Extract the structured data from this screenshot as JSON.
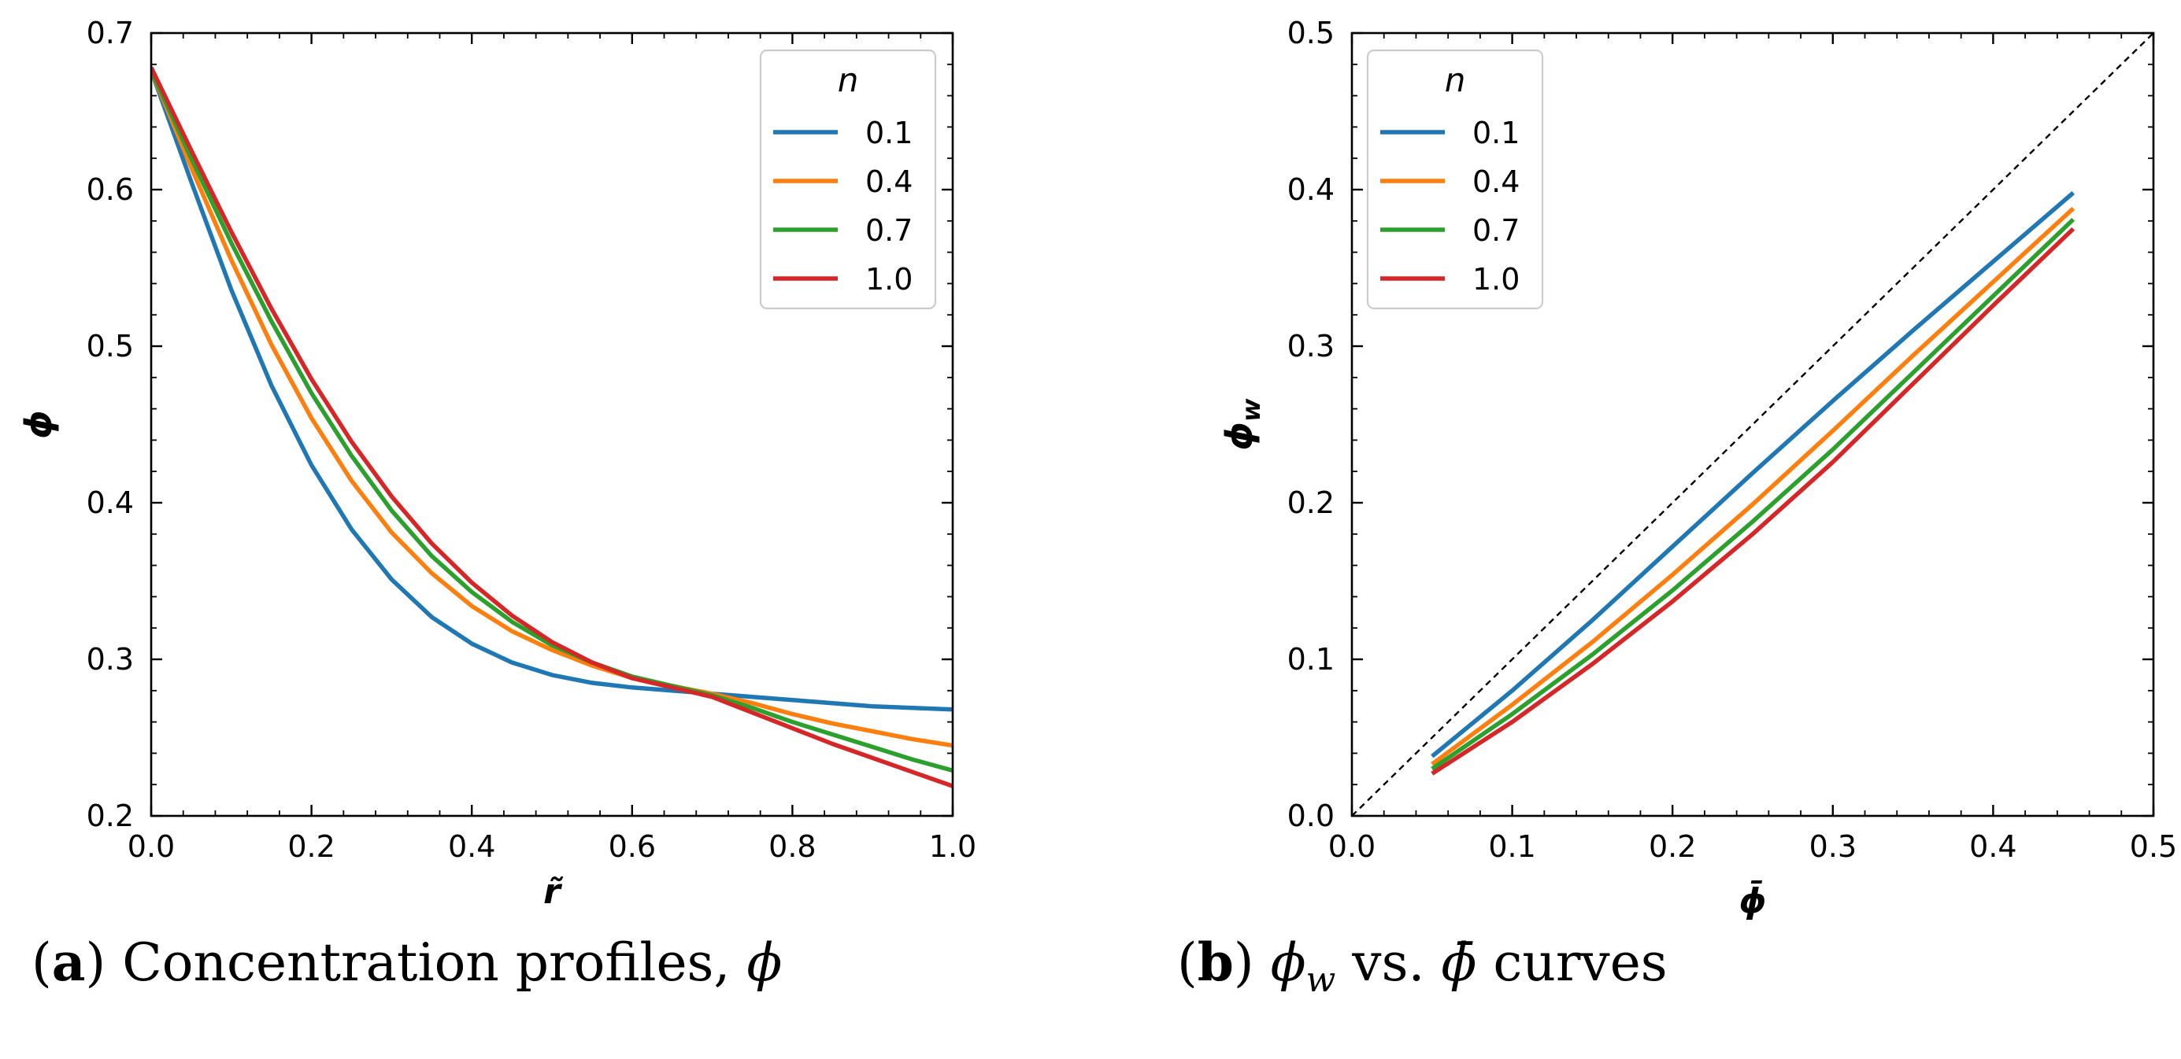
{
  "chart_data": [
    {
      "type": "line",
      "panel": "a",
      "xlabel": "r̃",
      "ylabel": "ϕ",
      "xlim": [
        0.0,
        1.0
      ],
      "ylim": [
        0.2,
        0.7
      ],
      "xticks": [
        "0.0",
        "0.2",
        "0.4",
        "0.6",
        "0.8",
        "1.0"
      ],
      "yticks": [
        "0.2",
        "0.3",
        "0.4",
        "0.5",
        "0.6",
        "0.7"
      ],
      "legend": {
        "title": "n",
        "placement": "top-right"
      },
      "grid": false,
      "x": [
        0.0,
        0.05,
        0.1,
        0.15,
        0.2,
        0.25,
        0.3,
        0.35,
        0.4,
        0.45,
        0.5,
        0.55,
        0.6,
        0.65,
        0.7,
        0.75,
        0.8,
        0.85,
        0.9,
        0.95,
        1.0
      ],
      "series": [
        {
          "name": "0.1",
          "color": "#1f77b4",
          "values": [
            0.676,
            0.605,
            0.536,
            0.475,
            0.424,
            0.383,
            0.351,
            0.327,
            0.31,
            0.298,
            0.29,
            0.285,
            0.282,
            0.28,
            0.278,
            0.276,
            0.274,
            0.272,
            0.27,
            0.269,
            0.268
          ]
        },
        {
          "name": "0.4",
          "color": "#ff7f0e",
          "values": [
            0.676,
            0.614,
            0.555,
            0.501,
            0.454,
            0.414,
            0.381,
            0.355,
            0.334,
            0.318,
            0.306,
            0.296,
            0.288,
            0.283,
            0.278,
            0.272,
            0.265,
            0.259,
            0.254,
            0.249,
            0.245
          ]
        },
        {
          "name": "0.7",
          "color": "#2ca02c",
          "values": [
            0.676,
            0.62,
            0.566,
            0.516,
            0.47,
            0.43,
            0.395,
            0.366,
            0.343,
            0.324,
            0.309,
            0.298,
            0.289,
            0.283,
            0.277,
            0.269,
            0.26,
            0.252,
            0.244,
            0.236,
            0.229
          ]
        },
        {
          "name": "1.0",
          "color": "#d62728",
          "values": [
            0.678,
            0.625,
            0.573,
            0.524,
            0.479,
            0.439,
            0.404,
            0.374,
            0.349,
            0.328,
            0.311,
            0.298,
            0.288,
            0.282,
            0.276,
            0.266,
            0.256,
            0.246,
            0.237,
            0.228,
            0.219
          ]
        }
      ]
    },
    {
      "type": "line",
      "panel": "b",
      "xlabel": "ϕ̄",
      "ylabel": "ϕw",
      "xlim": [
        0.0,
        0.5
      ],
      "ylim": [
        0.0,
        0.5
      ],
      "xticks": [
        "0.0",
        "0.1",
        "0.2",
        "0.3",
        "0.4",
        "0.5"
      ],
      "yticks": [
        "0.0",
        "0.1",
        "0.2",
        "0.3",
        "0.4",
        "0.5"
      ],
      "legend": {
        "title": "n",
        "placement": "top-left"
      },
      "grid": false,
      "reference_line": {
        "style": "dashed",
        "color": "#000000",
        "x": [
          0.0,
          0.5
        ],
        "y": [
          0.0,
          0.5
        ]
      },
      "x": [
        0.05,
        0.1,
        0.15,
        0.2,
        0.25,
        0.3,
        0.35,
        0.4,
        0.45
      ],
      "series": [
        {
          "name": "0.1",
          "color": "#1f77b4",
          "values": [
            0.038,
            0.08,
            0.125,
            0.172,
            0.219,
            0.265,
            0.31,
            0.354,
            0.398
          ]
        },
        {
          "name": "0.4",
          "color": "#ff7f0e",
          "values": [
            0.033,
            0.071,
            0.111,
            0.154,
            0.199,
            0.246,
            0.294,
            0.341,
            0.388
          ]
        },
        {
          "name": "0.7",
          "color": "#2ca02c",
          "values": [
            0.03,
            0.065,
            0.103,
            0.144,
            0.188,
            0.234,
            0.283,
            0.332,
            0.381
          ]
        },
        {
          "name": "1.0",
          "color": "#d62728",
          "values": [
            0.027,
            0.06,
            0.097,
            0.137,
            0.18,
            0.226,
            0.276,
            0.326,
            0.375
          ]
        }
      ]
    }
  ],
  "captions": {
    "a": {
      "label": "a",
      "text": " Concentration profiles, ",
      "symbol": "ϕ"
    },
    "b": {
      "label": "b",
      "symbol_1": "ϕ",
      "sub": "w",
      "middle": " vs. ",
      "symbol_2": "ϕ̄",
      "tail": " curves"
    }
  }
}
